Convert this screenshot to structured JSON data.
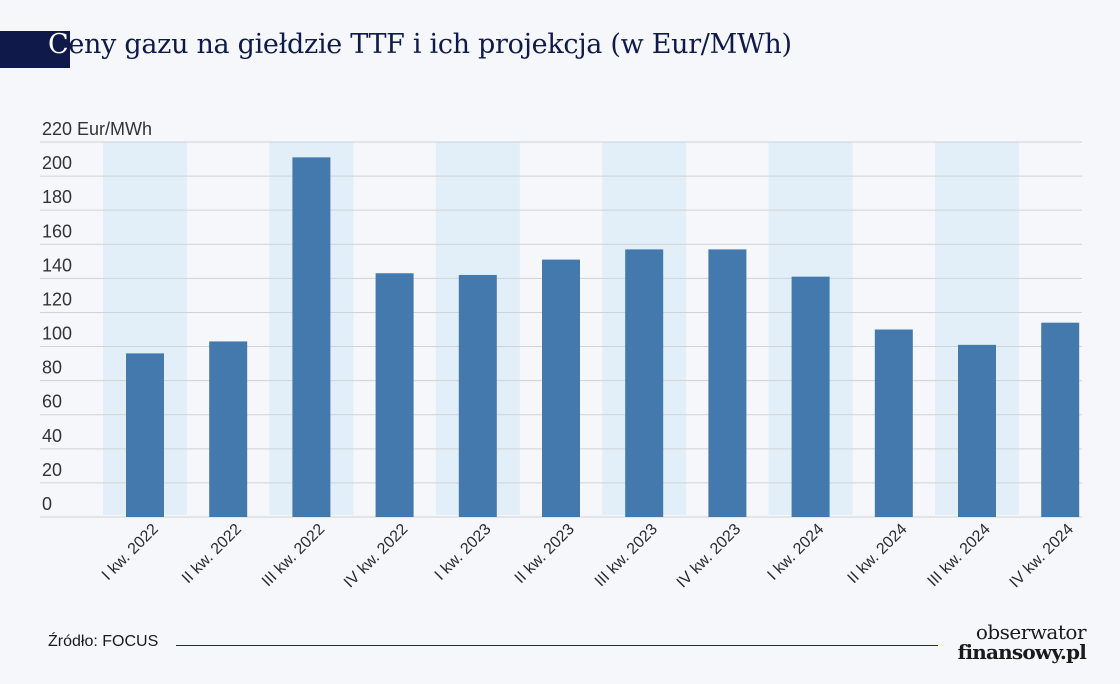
{
  "title": {
    "first_letter": "C",
    "rest": "eny gazu na giełdzie TTF i ich projekcja (w Eur/MWh)"
  },
  "source": "Źródło: FOCUS",
  "logo": {
    "line1": "obserwator",
    "line2": "finansowy.pl"
  },
  "colors": {
    "bar": "#4479ae",
    "band": "#e2eff8",
    "grid": "#cfd2d6",
    "title": "#0f1a4a"
  },
  "chart_data": {
    "type": "bar",
    "title": "Ceny gazu na giełdzie TTF i ich projekcja (w Eur/MWh)",
    "ylabel": "Eur/MWh",
    "ytick_labels": [
      "0",
      "20",
      "40",
      "60",
      "80",
      "100",
      "120",
      "140",
      "160",
      "180",
      "200",
      "220 Eur/MWh"
    ],
    "ylim": [
      0,
      220
    ],
    "grid": true,
    "categories": [
      "I kw. 2022",
      "II kw. 2022",
      "III kw. 2022",
      "IV kw. 2022",
      "I kw. 2023",
      "II kw. 2023",
      "III kw. 2023",
      "IV kw. 2023",
      "I kw. 2024",
      "II kw. 2024",
      "III kw. 2024",
      "IV kw. 2024"
    ],
    "values": [
      96,
      103,
      211,
      143,
      142,
      151,
      157,
      157,
      141,
      110,
      101,
      114
    ],
    "shaded_bands": [
      [
        0,
        1
      ],
      [
        2,
        3
      ],
      [
        4,
        5
      ],
      [
        6,
        7
      ],
      [
        8,
        9
      ],
      [
        10,
        11
      ]
    ]
  }
}
